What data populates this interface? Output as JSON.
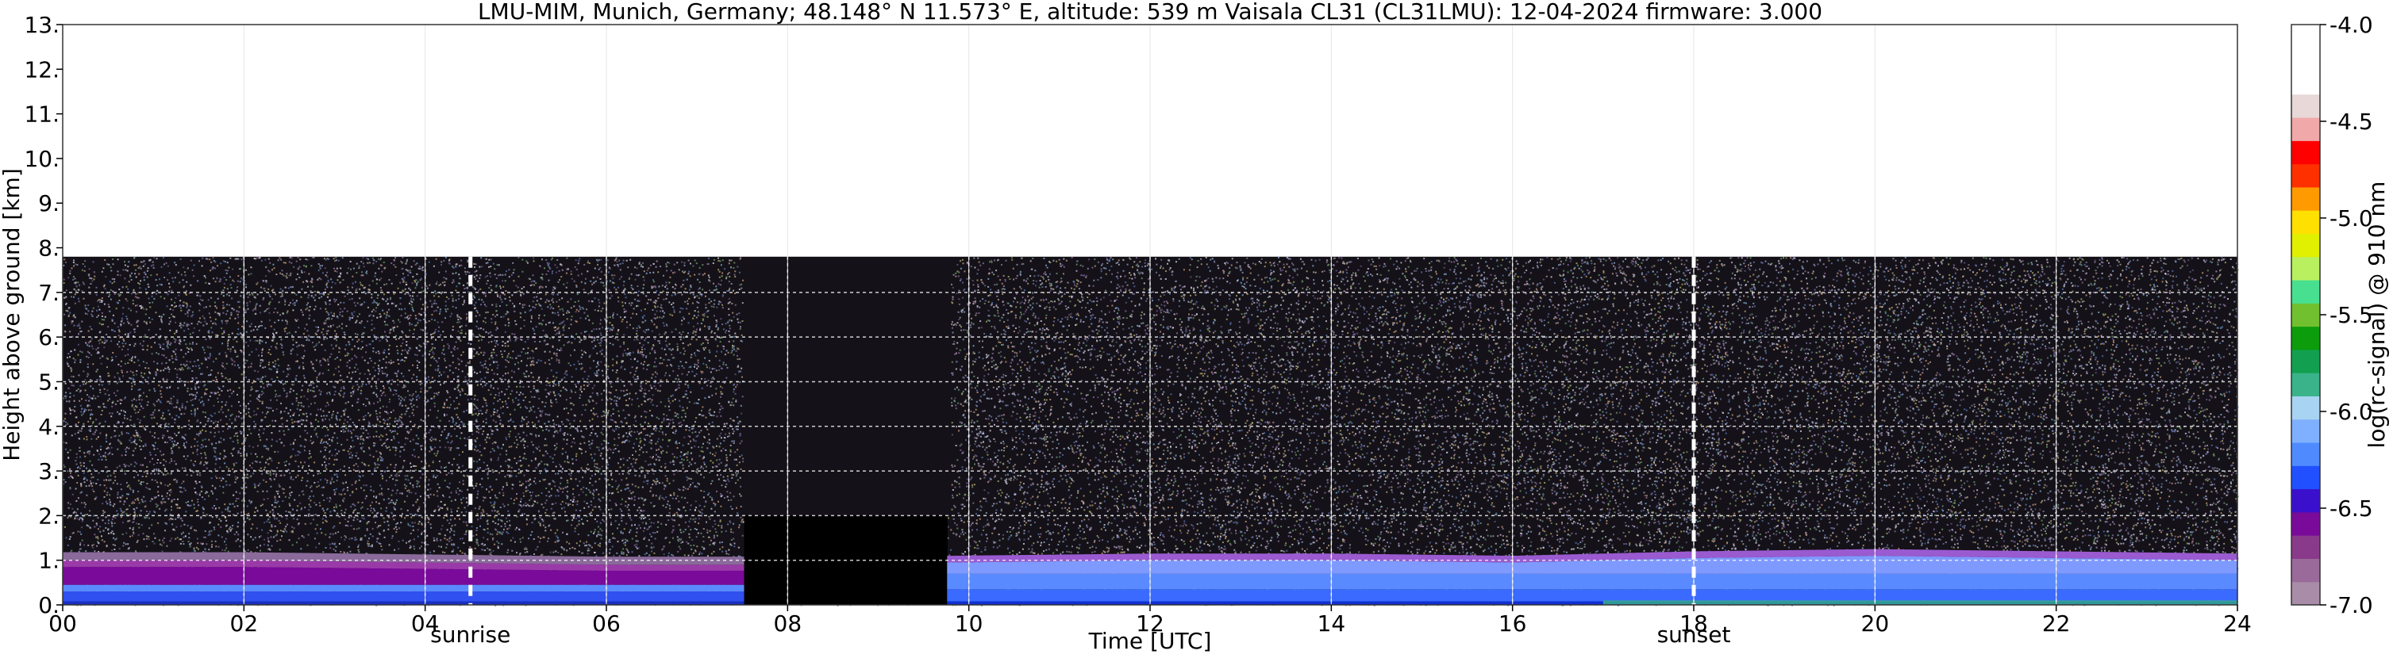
{
  "chart_data": {
    "type": "heatmap",
    "title": "LMU-MIM, Munich, Germany; 48.148° N 11.573° E, altitude: 539 m    Vaisala CL31 (CL31LMU): 12-04-2024    firmware: 3.000",
    "xlabel": "Time [UTC]",
    "ylabel": "Height above ground [km]",
    "colorbar_label": "log(rc-signal) @ 910 nm",
    "xlim": [
      0,
      24
    ],
    "ylim": [
      0,
      13
    ],
    "xticks": [
      0,
      2,
      4,
      6,
      8,
      10,
      12,
      14,
      16,
      18,
      20,
      22,
      24
    ],
    "xtick_labels": [
      "00",
      "02",
      "04",
      "06",
      "08",
      "10",
      "12",
      "14",
      "16",
      "18",
      "20",
      "22",
      "24"
    ],
    "yticks": [
      0,
      1,
      2,
      3,
      4,
      5,
      6,
      7,
      8,
      9,
      10,
      11,
      12,
      13
    ],
    "ytick_labels": [
      "0.",
      "1.",
      "2.",
      "3.",
      "4.",
      "5.",
      "6.",
      "7.",
      "8.",
      "9.",
      "10.",
      "11.",
      "12.",
      "13."
    ],
    "grid": true,
    "clim": [
      -7.0,
      -4.0
    ],
    "colorbar_ticks": [
      -7.0,
      -6.5,
      -6.0,
      -5.5,
      -5.0,
      -4.5,
      -4.0
    ],
    "colorbar_tick_labels": [
      "-7.0",
      "-6.5",
      "-6.0",
      "-5.5",
      "-5.0",
      "-4.5",
      "-4.0"
    ],
    "colormap": [
      "#a88ca8",
      "#9a6a9a",
      "#8a3a8a",
      "#7a0a9a",
      "#3a10cc",
      "#2050ff",
      "#4f8bff",
      "#7fb0ff",
      "#a8d4f2",
      "#3ab38a",
      "#12a050",
      "#0c9c0c",
      "#70c030",
      "#48e090",
      "#b8f060",
      "#e0f000",
      "#ffe000",
      "#ff9a00",
      "#ff3000",
      "#ff0000",
      "#f0a8a8",
      "#e8d8d8",
      "#ffffff",
      "#ffffff",
      "#ffffff"
    ],
    "data_max_height_km": 7.8,
    "boundary_layer": {
      "times": [
        0,
        2,
        4,
        6,
        7.5,
        9.8,
        12,
        14,
        16,
        18,
        20,
        22,
        24
      ],
      "heights_km": [
        1.0,
        1.0,
        0.95,
        0.9,
        0.9,
        0.95,
        1.0,
        1.0,
        0.95,
        1.05,
        1.1,
        1.05,
        1.0
      ]
    },
    "missing_data_intervals": [
      [
        7.5,
        9.8
      ]
    ],
    "sun_events": [
      {
        "label": "sunrise",
        "time": 4.5
      },
      {
        "label": "sunset",
        "time": 18.0
      }
    ]
  }
}
